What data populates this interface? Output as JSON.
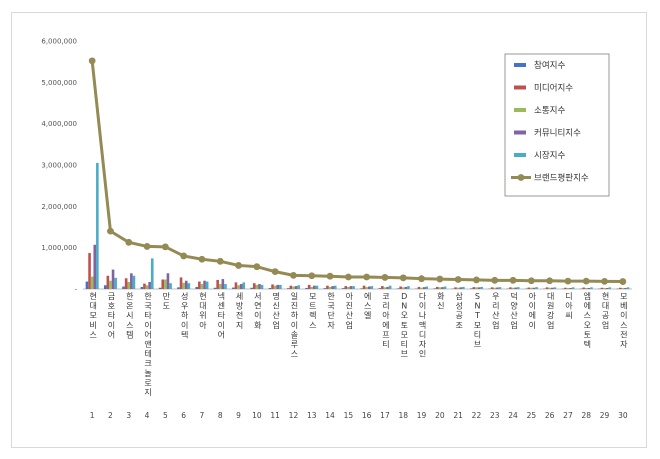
{
  "chart_data": {
    "type": "bar",
    "title": "",
    "xlabel": "",
    "ylabel": "",
    "ylim": [
      0,
      6000000
    ],
    "yticks": [
      {
        "value": 0,
        "label": "-"
      },
      {
        "value": 1000000,
        "label": "1,000,000"
      },
      {
        "value": 2000000,
        "label": "2,000,000"
      },
      {
        "value": 3000000,
        "label": "3,000,000"
      },
      {
        "value": 4000000,
        "label": "4,000,000"
      },
      {
        "value": 5000000,
        "label": "5,000,000"
      },
      {
        "value": 6000000,
        "label": "6,000,000"
      }
    ],
    "categories": [
      "현대모비스",
      "금호타이어",
      "한온시스템",
      "한국타이어앤테크놀로지",
      "만도",
      "성우하이텍",
      "현대위아",
      "넥센타이어",
      "세방전지",
      "서연이화",
      "명신산업",
      "일진하이솔루스",
      "모트렉스",
      "한국단자",
      "아진산업",
      "에스엘",
      "코리아에프티",
      "DN오토모티브",
      "다이나맥디자인",
      "화신",
      "삼성공조",
      "SNT모티브",
      "우리산업",
      "덕양산업",
      "아이에이",
      "대원강업",
      "디아씨",
      "엠에스오토텍",
      "현대공업",
      "모베이스전자"
    ],
    "ranks": [
      "1",
      "2",
      "3",
      "4",
      "5",
      "6",
      "7",
      "8",
      "9",
      "10",
      "11",
      "12",
      "13",
      "14",
      "15",
      "16",
      "17",
      "18",
      "19",
      "20",
      "21",
      "22",
      "23",
      "24",
      "25",
      "26",
      "27",
      "28",
      "29",
      "30"
    ],
    "series": [
      {
        "name": "참여지수",
        "kind": "bar",
        "color": "#4472c4",
        "values": [
          180000,
          90000,
          60000,
          50000,
          30000,
          40000,
          50000,
          30000,
          35000,
          30000,
          25000,
          20000,
          25000,
          20000,
          20000,
          15000,
          20000,
          15000,
          10000,
          15000,
          10000,
          15000,
          10000,
          10000,
          10000,
          10000,
          8000,
          8000,
          8000,
          8000
        ]
      },
      {
        "name": "미디어지수",
        "kind": "bar",
        "color": "#c0504d",
        "values": [
          870000,
          320000,
          260000,
          130000,
          230000,
          280000,
          180000,
          220000,
          160000,
          140000,
          110000,
          80000,
          100000,
          80000,
          70000,
          80000,
          70000,
          60000,
          50000,
          50000,
          40000,
          45000,
          40000,
          40000,
          35000,
          40000,
          30000,
          35000,
          30000,
          30000
        ]
      },
      {
        "name": "소통지수",
        "kind": "bar",
        "color": "#9bbb59",
        "values": [
          300000,
          200000,
          170000,
          90000,
          230000,
          150000,
          120000,
          120000,
          90000,
          100000,
          80000,
          60000,
          50000,
          50000,
          50000,
          45000,
          40000,
          40000,
          30000,
          40000,
          30000,
          40000,
          30000,
          30000,
          30000,
          30000,
          25000,
          25000,
          25000,
          25000
        ]
      },
      {
        "name": "커뮤니티지수",
        "kind": "bar",
        "color": "#8064a2",
        "values": [
          1070000,
          470000,
          380000,
          170000,
          380000,
          200000,
          200000,
          240000,
          120000,
          120000,
          100000,
          70000,
          80000,
          70000,
          70000,
          60000,
          50000,
          50000,
          45000,
          45000,
          40000,
          40000,
          35000,
          35000,
          30000,
          30000,
          25000,
          25000,
          25000,
          25000
        ]
      },
      {
        "name": "시장지수",
        "kind": "bar",
        "color": "#4bacc6",
        "values": [
          3050000,
          270000,
          320000,
          740000,
          140000,
          140000,
          180000,
          120000,
          160000,
          100000,
          100000,
          90000,
          80000,
          80000,
          70000,
          70000,
          80000,
          70000,
          60000,
          60000,
          50000,
          50000,
          45000,
          45000,
          45000,
          40000,
          40000,
          40000,
          40000,
          40000
        ]
      },
      {
        "name": "브랜드평판지수",
        "kind": "line",
        "color": "#948a54",
        "values": [
          5520000,
          1400000,
          1130000,
          1030000,
          1020000,
          800000,
          720000,
          670000,
          570000,
          540000,
          420000,
          330000,
          320000,
          310000,
          290000,
          290000,
          280000,
          270000,
          250000,
          240000,
          230000,
          220000,
          210000,
          210000,
          200000,
          200000,
          190000,
          190000,
          185000,
          180000
        ]
      }
    ],
    "legend": {
      "placement": "top-right"
    },
    "grid": false
  }
}
